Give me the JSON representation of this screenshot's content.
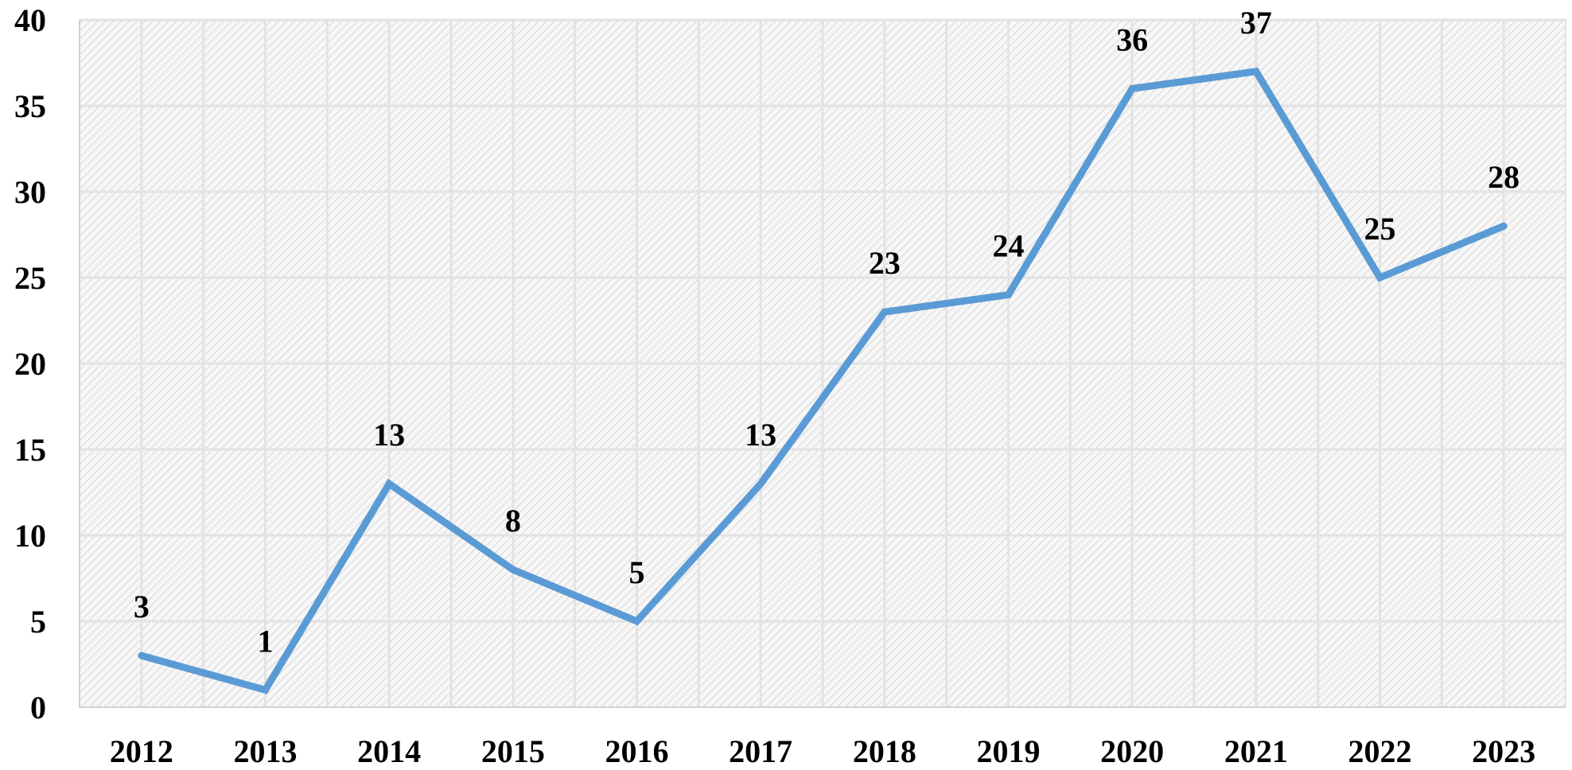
{
  "chart_data": {
    "type": "line",
    "title": "",
    "xlabel": "",
    "ylabel": "",
    "categories": [
      "2012",
      "2013",
      "2014",
      "2015",
      "2016",
      "2017",
      "2018",
      "2019",
      "2020",
      "2021",
      "2022",
      "2023"
    ],
    "series": [
      {
        "values": [
          3,
          1,
          13,
          8,
          5,
          13,
          23,
          24,
          36,
          37,
          25,
          28
        ],
        "color": "#5b9bd5"
      }
    ],
    "ylim": [
      0,
      40
    ],
    "yticks": [
      0,
      5,
      10,
      15,
      20,
      25,
      30,
      35,
      40
    ],
    "grid": true,
    "plot_background": "hatched light gray",
    "data_labels": true,
    "legend": "none"
  }
}
